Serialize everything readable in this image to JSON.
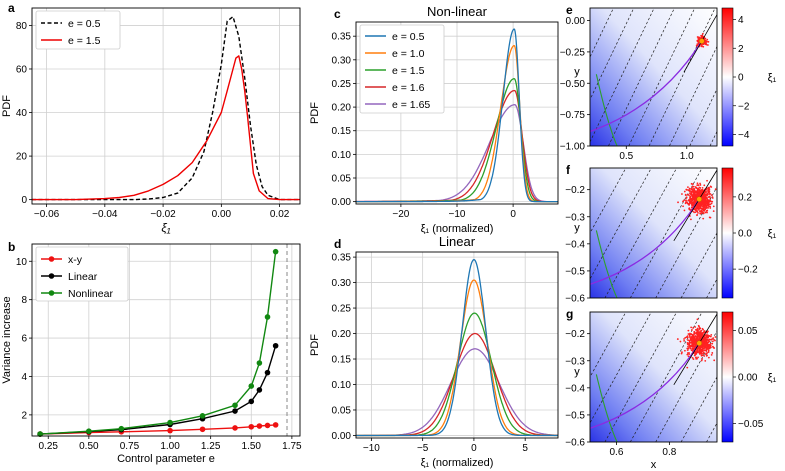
{
  "figure": {
    "panels": [
      {
        "letter": "a"
      },
      {
        "letter": "b"
      },
      {
        "letter": "c"
      },
      {
        "letter": "d"
      },
      {
        "letter": "e"
      },
      {
        "letter": "f"
      },
      {
        "letter": "g"
      }
    ]
  },
  "colors": {
    "c_blue": "#1f77b4",
    "c_orange": "#ff7f0e",
    "c_green": "#2ca02c",
    "c_red": "#d62728",
    "c_purple": "#9467bd",
    "a_black": "#000000",
    "a_red": "#ee0000",
    "b_red": "#ee1111",
    "b_black": "#000000",
    "b_green": "#118811"
  },
  "chart_data": [
    {
      "id": "a",
      "type": "line",
      "xlabel": "ξ₁",
      "ylabel": "PDF",
      "xlim": [
        -0.065,
        0.027
      ],
      "ylim": [
        -2,
        88
      ],
      "xticks": [
        -0.06,
        -0.04,
        -0.02,
        0.0,
        0.02
      ],
      "xtick_labels": [
        "−0.06",
        "−0.04",
        "−0.02",
        "0.00",
        "0.02"
      ],
      "yticks": [
        0,
        20,
        40,
        60,
        80
      ],
      "yticks_labels": [
        "0",
        "20",
        "40",
        "60",
        "80"
      ],
      "legend": "top-left",
      "grid": true,
      "series": [
        {
          "name": "e = 0.5",
          "style": "dashed",
          "x": [
            -0.065,
            -0.03,
            -0.025,
            -0.02,
            -0.015,
            -0.01,
            -0.006,
            -0.003,
            0.0,
            0.002,
            0.004,
            0.006,
            0.008,
            0.01,
            0.012,
            0.014,
            0.016,
            0.02,
            0.027
          ],
          "y": [
            0,
            0,
            0.3,
            1,
            3,
            10,
            22,
            40,
            62,
            82,
            84,
            75,
            56,
            34,
            16,
            6,
            2,
            0,
            0
          ]
        },
        {
          "name": "e = 1.5",
          "style": "solid",
          "x": [
            -0.065,
            -0.05,
            -0.04,
            -0.035,
            -0.03,
            -0.025,
            -0.02,
            -0.015,
            -0.01,
            -0.005,
            0.0,
            0.002,
            0.004,
            0.005,
            0.006,
            0.007,
            0.008,
            0.009,
            0.01,
            0.011,
            0.013,
            0.016,
            0.02,
            0.027
          ],
          "y": [
            0,
            0,
            0.5,
            1,
            2,
            4,
            7,
            11,
            17,
            27,
            40,
            50,
            60,
            65,
            66,
            60,
            50,
            38,
            25,
            12,
            4,
            0.5,
            0,
            0
          ]
        }
      ]
    },
    {
      "id": "b",
      "type": "line",
      "xlabel": "Control parameter e",
      "ylabel": "Variance increase",
      "xlim": [
        0.15,
        1.8
      ],
      "ylim": [
        0.9,
        10.9
      ],
      "xticks": [
        0.25,
        0.5,
        0.75,
        1.0,
        1.25,
        1.5,
        1.75
      ],
      "xtick_labels": [
        "0.25",
        "0.50",
        "0.75",
        "1.00",
        "1.25",
        "1.50",
        "1.75"
      ],
      "yticks": [
        2,
        4,
        6,
        8,
        10
      ],
      "ytick_labels": [
        "2",
        "4",
        "6",
        "8",
        "10"
      ],
      "vline": 1.72,
      "legend": "top-left",
      "grid": true,
      "series": [
        {
          "name": "x-y",
          "x": [
            0.2,
            0.5,
            0.7,
            1.0,
            1.2,
            1.4,
            1.5,
            1.55,
            1.6,
            1.65
          ],
          "y": [
            1.0,
            1.08,
            1.12,
            1.18,
            1.25,
            1.32,
            1.38,
            1.42,
            1.45,
            1.48
          ]
        },
        {
          "name": "Linear",
          "x": [
            0.2,
            0.5,
            0.7,
            1.0,
            1.2,
            1.4,
            1.5,
            1.55,
            1.6,
            1.65
          ],
          "y": [
            1.0,
            1.13,
            1.23,
            1.5,
            1.8,
            2.2,
            2.7,
            3.3,
            4.2,
            5.6
          ]
        },
        {
          "name": "Nonlinear",
          "x": [
            0.2,
            0.5,
            0.7,
            1.0,
            1.2,
            1.4,
            1.5,
            1.55,
            1.6,
            1.65
          ],
          "y": [
            1.0,
            1.15,
            1.28,
            1.6,
            1.95,
            2.5,
            3.5,
            4.7,
            7.1,
            10.5
          ]
        }
      ]
    },
    {
      "id": "c",
      "type": "line",
      "title": "Non-linear",
      "xlabel": "ξ₁ (normalized)",
      "ylabel": "PDF",
      "xlim": [
        -28,
        8
      ],
      "ylim": [
        -0.005,
        0.38
      ],
      "xticks": [
        -20,
        -10,
        0
      ],
      "xtick_labels": [
        "−20",
        "−10",
        "0"
      ],
      "yticks": [
        0.0,
        0.05,
        0.1,
        0.15,
        0.2,
        0.25,
        0.3,
        0.35
      ],
      "ytick_labels": [
        "0.00",
        "0.05",
        "0.10",
        "0.15",
        "0.20",
        "0.25",
        "0.30",
        "0.35"
      ],
      "legend": "top-left",
      "grid": true,
      "series": [
        {
          "name": "e = 0.5",
          "peak": 0.365,
          "x0": 0.2,
          "sl": 2.0,
          "sr": 0.9
        },
        {
          "name": "e = 1.0",
          "peak": 0.33,
          "x0": 0.2,
          "sl": 2.4,
          "sr": 1.0
        },
        {
          "name": "e = 1.5",
          "peak": 0.26,
          "x0": 0.2,
          "sl": 3.2,
          "sr": 1.2
        },
        {
          "name": "e = 1.6",
          "peak": 0.235,
          "x0": 0.25,
          "sl": 3.8,
          "sr": 1.35
        },
        {
          "name": "e = 1.65",
          "peak": 0.205,
          "x0": 0.3,
          "sl": 4.5,
          "sr": 1.5
        }
      ]
    },
    {
      "id": "d",
      "type": "line",
      "title": "Linear",
      "xlabel": "ξ₁ (normalized)",
      "ylabel": "PDF",
      "xlim": [
        -11.5,
        8.2
      ],
      "ylim": [
        -0.005,
        0.36
      ],
      "xticks": [
        -10,
        -5,
        0,
        5
      ],
      "xtick_labels": [
        "−10",
        "−5",
        "0",
        "5"
      ],
      "yticks": [
        0.0,
        0.05,
        0.1,
        0.15,
        0.2,
        0.25,
        0.3,
        0.35
      ],
      "ytick_labels": [
        "0.00",
        "0.05",
        "0.10",
        "0.15",
        "0.20",
        "0.25",
        "0.30",
        "0.35"
      ],
      "grid": true,
      "series": [
        {
          "name": "e = 0.5",
          "peak": 0.345,
          "x0": 0,
          "sl": 1.15,
          "sr": 1.15
        },
        {
          "name": "e = 1.0",
          "peak": 0.305,
          "x0": 0,
          "sl": 1.3,
          "sr": 1.3
        },
        {
          "name": "e = 1.5",
          "peak": 0.24,
          "x0": 0.05,
          "sl": 1.65,
          "sr": 1.65
        },
        {
          "name": "e = 1.6",
          "peak": 0.2,
          "x0": 0.1,
          "sl": 2.0,
          "sr": 2.0
        },
        {
          "name": "e = 1.65",
          "peak": 0.17,
          "x0": 0.1,
          "sl": 2.35,
          "sr": 2.35
        }
      ]
    },
    {
      "id": "e",
      "type": "heatmap",
      "xlabel": "",
      "ylabel": "y",
      "xlim": [
        0.2,
        1.25
      ],
      "ylim": [
        -1.0,
        0.1
      ],
      "xticks": [
        0.5,
        1.0
      ],
      "xtick_labels": [
        "0.5",
        "1.0"
      ],
      "yticks": [
        0.0,
        -0.25,
        -0.5,
        -0.75,
        -1.0
      ],
      "ytick_labels": [
        "0.00",
        "−0.25",
        "−0.50",
        "−0.75",
        "−1.00"
      ],
      "colorbar": {
        "label": "ξ₁",
        "ticks": [
          4,
          2,
          0,
          -2,
          -4
        ],
        "tick_labels": [
          "4",
          "2",
          "0",
          "−2",
          "−4"
        ],
        "range": [
          -4.8,
          4.8
        ]
      }
    },
    {
      "id": "f",
      "type": "heatmap",
      "xlabel": "",
      "ylabel": "y",
      "xlim": [
        0.5,
        0.98
      ],
      "ylim": [
        -0.6,
        -0.12
      ],
      "xticks": [],
      "xtick_labels": [],
      "yticks": [
        -0.2,
        -0.3,
        -0.4,
        -0.5,
        -0.6
      ],
      "ytick_labels": [
        "−0.2",
        "−0.3",
        "−0.4",
        "−0.5",
        "−0.6"
      ],
      "colorbar": {
        "label": "ξ₁",
        "ticks": [
          0.2,
          0.0,
          -0.2
        ],
        "tick_labels": [
          "0.2",
          "0.0",
          "−0.2"
        ],
        "range": [
          -0.36,
          0.36
        ]
      }
    },
    {
      "id": "g",
      "type": "heatmap",
      "xlabel": "x",
      "ylabel": "y",
      "xlim": [
        0.5,
        0.98
      ],
      "ylim": [
        -0.6,
        -0.12
      ],
      "xticks": [
        0.6,
        0.8
      ],
      "xtick_labels": [
        "0.6",
        "0.8"
      ],
      "yticks": [
        -0.2,
        -0.3,
        -0.4,
        -0.5,
        -0.6
      ],
      "ytick_labels": [
        "−0.2",
        "−0.3",
        "−0.4",
        "−0.5",
        "−0.6"
      ],
      "colorbar": {
        "label": "ξ₁",
        "ticks": [
          0.05,
          0.0,
          -0.05
        ],
        "tick_labels": [
          "0.05",
          "0.00",
          "−0.05"
        ],
        "range": [
          -0.07,
          0.07
        ]
      }
    }
  ]
}
